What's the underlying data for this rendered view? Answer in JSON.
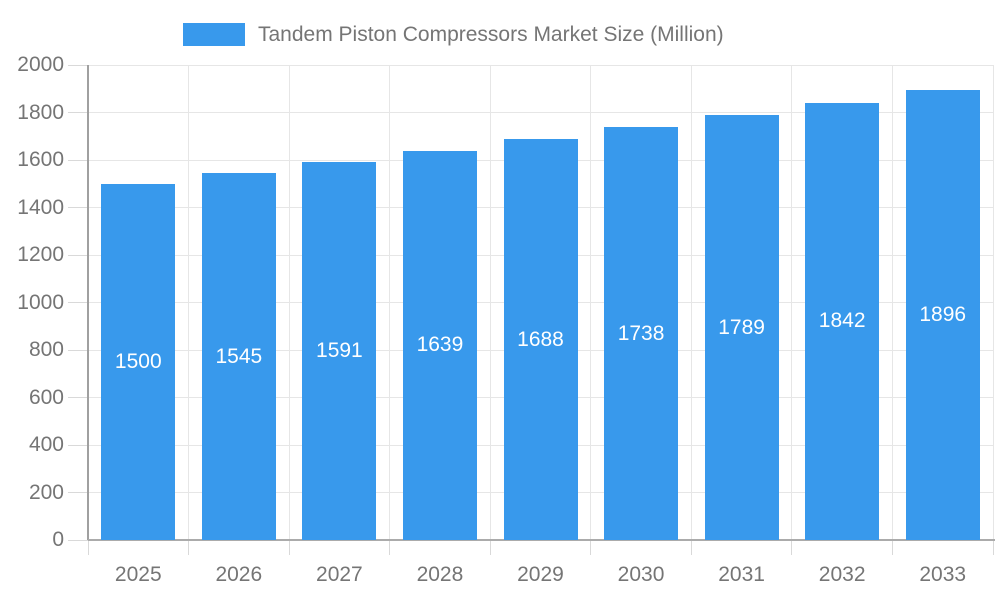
{
  "legend": {
    "label": "Tandem Piston Compressors Market Size (Million)"
  },
  "chart_data": {
    "type": "bar",
    "title": "Tandem Piston Compressors Market Size (Million)",
    "categories": [
      "2025",
      "2026",
      "2027",
      "2028",
      "2029",
      "2030",
      "2031",
      "2032",
      "2033"
    ],
    "values": [
      1500,
      1545,
      1591,
      1639,
      1688,
      1738,
      1789,
      1842,
      1896
    ],
    "xlabel": "",
    "ylabel": "",
    "ylim": [
      0,
      2000
    ],
    "ytick_step": 200,
    "legend_position": "top",
    "grid": true,
    "bar_color": "#3899ec",
    "bar_label_color": "#ffffff",
    "text_color": "#757575"
  }
}
